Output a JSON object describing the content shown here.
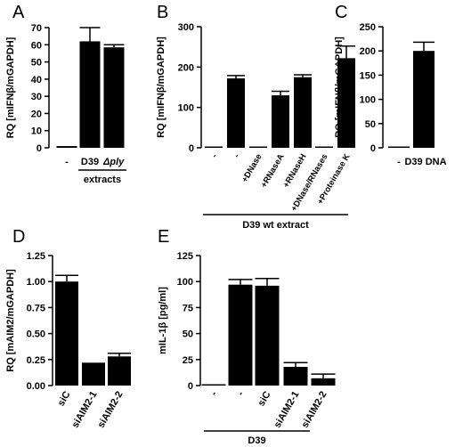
{
  "chart_data": [
    {
      "panel": "A",
      "type": "bar",
      "ylabel": "RQ [mIFNβ/mGAPDH]",
      "ylim": [
        0,
        70
      ],
      "yticks": [
        0,
        10,
        20,
        30,
        40,
        50,
        60,
        70
      ],
      "categories": [
        "-",
        "D39",
        "Δply"
      ],
      "values": [
        1,
        62,
        58.5
      ],
      "errors": [
        0,
        8,
        1.5
      ],
      "group_label": "extracts"
    },
    {
      "panel": "B",
      "type": "bar",
      "ylabel": "RQ [mIFNβ/mGAPDH]",
      "ylim": [
        0,
        300
      ],
      "yticks": [
        0,
        100,
        200,
        300
      ],
      "categories": [
        "-",
        "-",
        "+DNase",
        "+RNaseA",
        "+RNaseH",
        "+DNase/RNases",
        "+Proteinase K"
      ],
      "values": [
        1,
        172,
        2,
        130,
        175,
        2,
        222
      ],
      "errors": [
        0,
        7,
        0,
        10,
        6,
        0,
        30
      ],
      "group_label": "D39 wt extract"
    },
    {
      "panel": "C",
      "type": "bar",
      "ylabel": "RQ [mIFNβ/mGAPDH]",
      "ylim": [
        0,
        250
      ],
      "yticks": [
        0,
        50,
        100,
        150,
        200,
        250
      ],
      "categories": [
        "-",
        "D39 DNA"
      ],
      "values": [
        2,
        200
      ],
      "errors": [
        0,
        18
      ]
    },
    {
      "panel": "D",
      "type": "bar",
      "ylabel": "RQ [mAIM2/mGAPDH]",
      "ylim": [
        0,
        1.25
      ],
      "yticks": [
        "0.00",
        "0.25",
        "0.50",
        "0.75",
        "1.00",
        "1.25"
      ],
      "categories": [
        "siC",
        "siAIM2-1",
        "siAIM2-2"
      ],
      "values": [
        1.0,
        0.22,
        0.28
      ],
      "errors": [
        0.06,
        0.0,
        0.03
      ]
    },
    {
      "panel": "E",
      "type": "bar",
      "ylabel": "mIL-1β [pg/ml]",
      "ylim": [
        0,
        125
      ],
      "yticks": [
        0,
        25,
        50,
        75,
        100,
        125
      ],
      "categories": [
        "-",
        "-",
        "siC",
        "siAIM2-1",
        "siAIM2-2"
      ],
      "values": [
        0,
        97,
        96,
        18,
        7
      ],
      "errors": [
        0,
        5,
        7,
        4,
        4
      ],
      "group_label": "D39"
    }
  ]
}
